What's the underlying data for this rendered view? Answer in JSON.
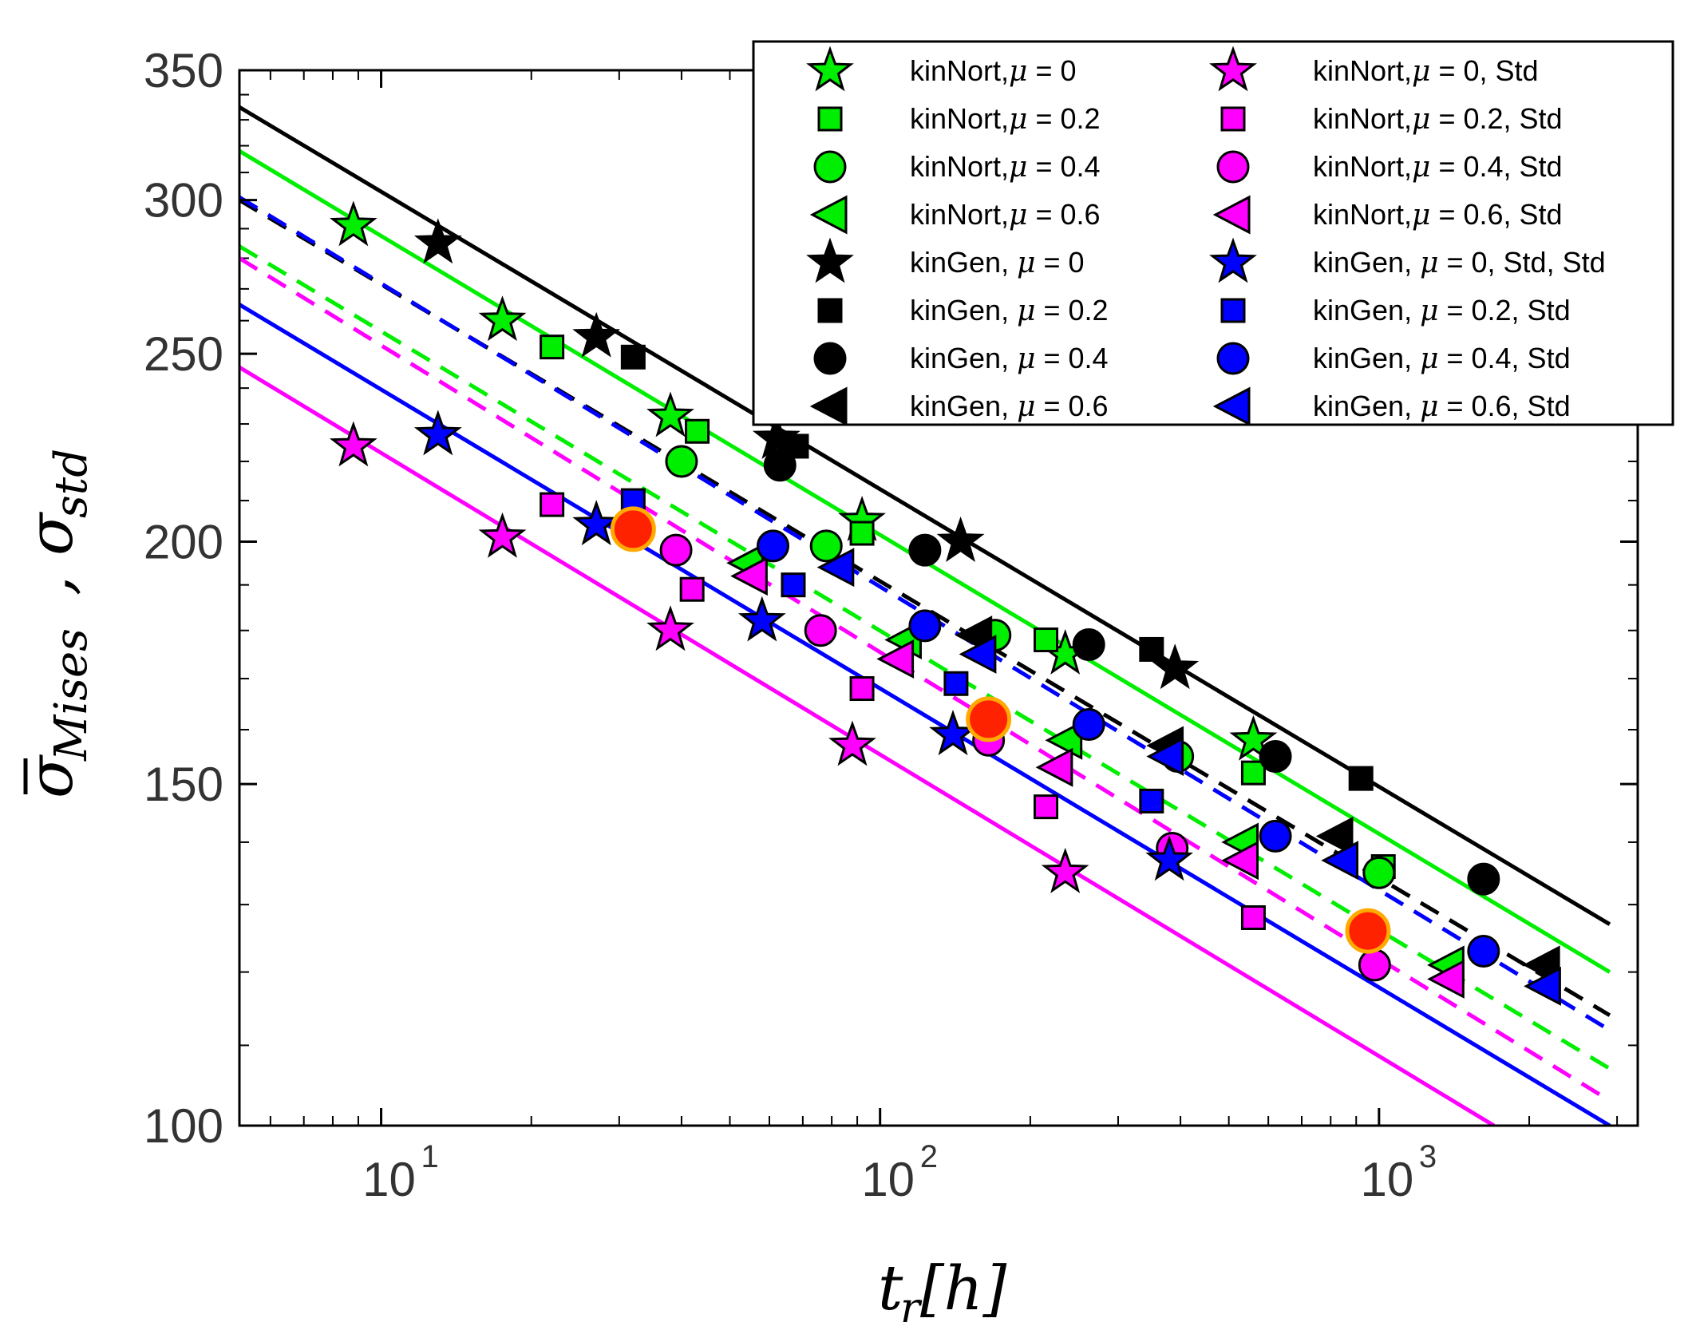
{
  "chart_data": {
    "type": "scatter",
    "title": "",
    "xlabel": "t_r[h]",
    "xlabel_parts": {
      "main": "t",
      "sub": "r",
      "unit": "[h]"
    },
    "ylabel": "σ̄_Mises, σ_std",
    "ylabel_parts": {
      "sym1": "σ",
      "sub1": "Mises",
      "sep": ",",
      "sym2": "σ",
      "sub2": "std"
    },
    "xscale": "log",
    "yscale": "log",
    "xlim": [
      5.2,
      3300
    ],
    "ylim": [
      100,
      350
    ],
    "x_tick_labels": [
      {
        "value": 10,
        "base": "10",
        "exp": "1"
      },
      {
        "value": 100,
        "base": "10",
        "exp": "2"
      },
      {
        "value": 1000,
        "base": "10",
        "exp": "3"
      }
    ],
    "y_ticks": [
      100,
      150,
      200,
      250,
      300,
      350
    ],
    "y_tick_labels": [
      "100",
      "150",
      "200",
      "250",
      "300",
      "350"
    ],
    "legend_position": "top-right",
    "highlight_points": [
      [
        32,
        203
      ],
      [
        165,
        162
      ],
      [
        950,
        126
      ]
    ],
    "highlight_colors": {
      "fill": "#ff2200",
      "edge": "#ffaa00"
    },
    "series": [
      {
        "name": "kinNort, μ = 0",
        "label_prefix": "kinNort,",
        "label_suffix": " = 0",
        "marker": "star",
        "color": "#00ee00",
        "points": [
          [
            8.8,
            291
          ],
          [
            17.5,
            260
          ],
          [
            38,
            232
          ],
          [
            92,
            205
          ],
          [
            235,
            175
          ],
          [
            560,
            158
          ]
        ]
      },
      {
        "name": "kinNort, μ = 0.2",
        "label_prefix": "kinNort,",
        "label_suffix": " = 0.2",
        "marker": "square",
        "color": "#00ee00",
        "points": [
          [
            22,
            252
          ],
          [
            43,
            228
          ],
          [
            92,
            202
          ],
          [
            215,
            178
          ],
          [
            560,
            152
          ],
          [
            1020,
            136
          ]
        ]
      },
      {
        "name": "kinNort, μ = 0.4",
        "label_prefix": "kinNort,",
        "label_suffix": " = 0.4",
        "marker": "circle",
        "color": "#00ee00",
        "points": [
          [
            40,
            220
          ],
          [
            78,
            199
          ],
          [
            170,
            179
          ],
          [
            395,
            155
          ],
          [
            1000,
            135
          ]
        ]
      },
      {
        "name": "kinNort, μ = 0.6",
        "label_prefix": "kinNort,",
        "label_suffix": " = 0.6",
        "marker": "triangle-left",
        "color": "#00ee00",
        "points": [
          [
            54,
            195
          ],
          [
            112,
            178
          ],
          [
            235,
            158
          ],
          [
            530,
            140
          ],
          [
            1370,
            121
          ]
        ]
      },
      {
        "name": "kinGen, μ = 0",
        "label_prefix": "kinGen, ",
        "label_suffix": " = 0",
        "marker": "star",
        "color": "#000000",
        "points": [
          [
            13,
            285
          ],
          [
            27,
            255
          ],
          [
            62,
            226
          ],
          [
            145,
            200
          ],
          [
            390,
            172
          ]
        ]
      },
      {
        "name": "kinGen, μ = 0.2",
        "label_prefix": "kinGen, ",
        "label_suffix": " = 0.2",
        "marker": "square",
        "color": "#000000",
        "points": [
          [
            32,
            249
          ],
          [
            68,
            224
          ],
          [
            350,
            176
          ],
          [
            920,
            151
          ]
        ]
      },
      {
        "name": "kinGen, μ = 0.4",
        "label_prefix": "kinGen, ",
        "label_suffix": " = 0.4",
        "marker": "circle",
        "color": "#000000",
        "points": [
          [
            63,
            219
          ],
          [
            123,
            198
          ],
          [
            262,
            177
          ],
          [
            620,
            155
          ],
          [
            1620,
            134
          ]
        ]
      },
      {
        "name": "kinGen, μ = 0.6",
        "label_prefix": "kinGen, ",
        "label_suffix": " = 0.6",
        "marker": "triangle-left",
        "color": "#000000",
        "points": [
          [
            155,
            179
          ],
          [
            375,
            157
          ],
          [
            820,
            141
          ],
          [
            2130,
            121
          ]
        ]
      },
      {
        "name": "kinNort, μ = 0, Std",
        "label_prefix": "kinNort,",
        "label_suffix": " = 0, Std",
        "marker": "star",
        "color": "#ff00ff",
        "points": [
          [
            8.8,
            224
          ],
          [
            17.5,
            201
          ],
          [
            38,
            180
          ],
          [
            88,
            157
          ],
          [
            235,
            135
          ]
        ]
      },
      {
        "name": "kinNort, μ = 0.2, Std",
        "label_prefix": "kinNort,",
        "label_suffix": " = 0.2, Std",
        "marker": "square",
        "color": "#ff00ff",
        "points": [
          [
            22,
            209
          ],
          [
            42,
            189
          ],
          [
            92,
            168
          ],
          [
            215,
            146
          ],
          [
            560,
            128
          ]
        ]
      },
      {
        "name": "kinNort, μ = 0.4, Std",
        "label_prefix": "kinNort,",
        "label_suffix": " = 0.4, Std",
        "marker": "circle",
        "color": "#ff00ff",
        "points": [
          [
            39,
            198
          ],
          [
            76,
            180
          ],
          [
            165,
            158
          ],
          [
            385,
            139
          ],
          [
            980,
            121
          ]
        ]
      },
      {
        "name": "kinNort, μ = 0.6, Std",
        "label_prefix": "kinNort,",
        "label_suffix": " = 0.6, Std",
        "marker": "triangle-left",
        "color": "#ff00ff",
        "points": [
          [
            55,
            192
          ],
          [
            108,
            174
          ],
          [
            225,
            153
          ],
          [
            530,
            137
          ],
          [
            1370,
            119
          ]
        ]
      },
      {
        "name": "kinGen, μ = 0, Std, Std",
        "label_prefix": "kinGen, ",
        "label_suffix": " = 0, Std, Std",
        "marker": "star",
        "color": "#0000ff",
        "points": [
          [
            13,
            227
          ],
          [
            27,
            204
          ],
          [
            58,
            182
          ],
          [
            140,
            159
          ],
          [
            380,
            137
          ]
        ]
      },
      {
        "name": "kinGen, μ = 0.2, Std",
        "label_prefix": "kinGen, ",
        "label_suffix": " = 0.2, Std",
        "marker": "square",
        "color": "#0000ff",
        "points": [
          [
            32,
            210
          ],
          [
            67,
            190
          ],
          [
            142,
            169
          ],
          [
            350,
            147
          ]
        ]
      },
      {
        "name": "kinGen, μ = 0.4, Std",
        "label_prefix": "kinGen, ",
        "label_suffix": " = 0.4, Std",
        "marker": "circle",
        "color": "#0000ff",
        "points": [
          [
            61,
            199
          ],
          [
            123,
            181
          ],
          [
            262,
            161
          ],
          [
            620,
            141
          ],
          [
            1620,
            123
          ]
        ]
      },
      {
        "name": "kinGen, μ = 0.6, Std",
        "label_prefix": "kinGen, ",
        "label_suffix": " = 0.6, Std",
        "marker": "triangle-left",
        "color": "#0000ff",
        "points": [
          [
            82,
            194
          ],
          [
            158,
            175
          ],
          [
            375,
            155
          ],
          [
            840,
            137
          ],
          [
            2140,
            118
          ]
        ]
      }
    ],
    "fit_lines": [
      {
        "color": "#000000",
        "dash": false,
        "x": [
          5.2,
          2900
        ],
        "y": [
          335,
          127
        ]
      },
      {
        "color": "#00ee00",
        "dash": false,
        "x": [
          5.2,
          2900
        ],
        "y": [
          318,
          120
        ]
      },
      {
        "color": "#0000ff",
        "dash": false,
        "x": [
          5.2,
          2900
        ],
        "y": [
          265,
          100
        ]
      },
      {
        "color": "#ff00ff",
        "dash": false,
        "x": [
          5.2,
          1700
        ],
        "y": [
          246,
          100
        ]
      },
      {
        "color": "#000000",
        "dash": true,
        "x": [
          5.2,
          2900
        ],
        "y": [
          300,
          114
        ]
      },
      {
        "color": "#0000ff",
        "dash": true,
        "x": [
          5.2,
          2900
        ],
        "y": [
          301,
          112
        ]
      },
      {
        "color": "#00ee00",
        "dash": true,
        "x": [
          5.2,
          2900
        ],
        "y": [
          284,
          107
        ]
      },
      {
        "color": "#ff00ff",
        "dash": true,
        "x": [
          5.2,
          2900
        ],
        "y": [
          280,
          103
        ]
      }
    ]
  }
}
